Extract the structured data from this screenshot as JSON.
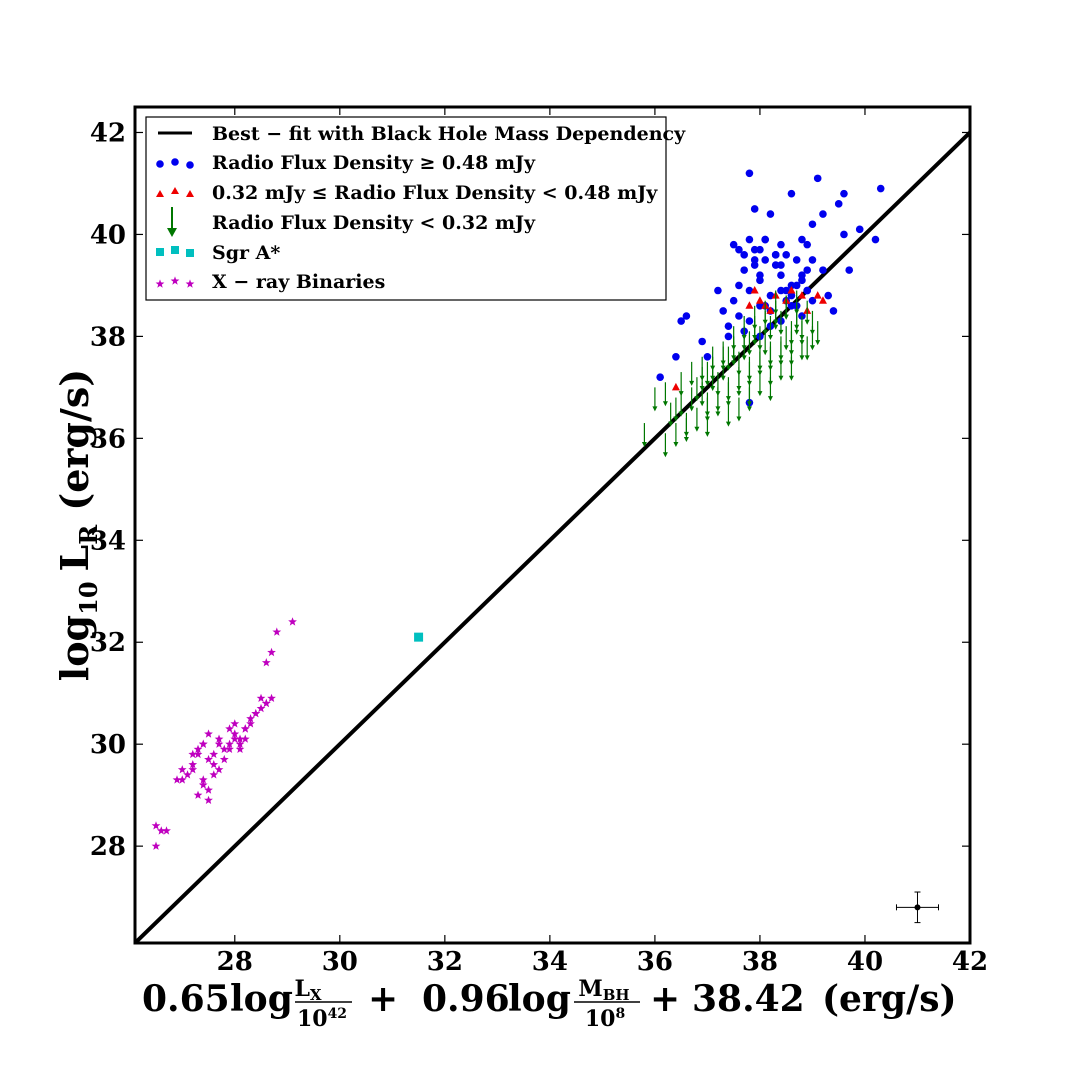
{
  "chart_data": {
    "type": "scatter",
    "title": "",
    "xlabel": "0.65 log (L_X / 10^42) + 0.96 log (M_BH / 10^8) + 38.42 (erg/s)",
    "ylabel": "log10 L_R (erg/s)",
    "xlabel_parts": {
      "c1": "0.65",
      "log1": "log",
      "num1": "L",
      "num1_sub": "X",
      "den1": "10",
      "den1_sup": "42",
      "plus1": "+",
      "c2": "0.96",
      "log2": "log",
      "num2": "M",
      "num2_sub": "BH",
      "den2": "10",
      "den2_sup": "8",
      "plus2": "+",
      "const": "38.42",
      "unit": "(erg/s)"
    },
    "ylabel_parts": {
      "main": "log",
      "sub": "10",
      "var": "L",
      "var_sub": "R",
      "unit": "(erg/s)"
    },
    "xlim": [
      26.1,
      42
    ],
    "ylim": [
      26.1,
      42.5
    ],
    "xticks": [
      28,
      30,
      32,
      34,
      36,
      38,
      40,
      42
    ],
    "yticks": [
      28,
      30,
      32,
      34,
      36,
      38,
      40,
      42
    ],
    "grid": false,
    "legend_position": "upper-left",
    "legend": [
      {
        "key": "fit",
        "label": "Best − fit with Black Hole Mass Dependency",
        "color": "#000000"
      },
      {
        "key": "blue",
        "label": "Radio Flux Density ≥ 0.48 mJy",
        "color": "#0000ee"
      },
      {
        "key": "red",
        "label": "0.32 mJy ≤ Radio Flux Density < 0.48 mJy",
        "color": "#ee0000"
      },
      {
        "key": "green",
        "label": "Radio Flux Density < 0.32 mJy",
        "color": "#007700"
      },
      {
        "key": "sgr",
        "label": "Sgr A*",
        "color": "#00bfbf"
      },
      {
        "key": "xrb",
        "label": "X − ray  Binaries",
        "color": "#bf00bf"
      }
    ],
    "fit_line": {
      "x": [
        26.1,
        42
      ],
      "y": [
        26.1,
        42
      ]
    },
    "error_bar": {
      "x": 41.0,
      "y": 26.8,
      "xerr": 0.4,
      "yerr": 0.3
    },
    "series": [
      {
        "name": "Radio Flux Density ≥ 0.48 mJy",
        "marker": "circle",
        "color": "#0000ee",
        "x": [
          37.8,
          39.1,
          39.6,
          40.3,
          38.6,
          39.2,
          38.2,
          37.9,
          39.5,
          39.6,
          39.9,
          37.5,
          37.8,
          37.6,
          38.1,
          38.4,
          38.8,
          39.0,
          37.7,
          37.9,
          38.3,
          38.7,
          39.2,
          39.7,
          40.2,
          36.1,
          36.4,
          36.5,
          36.6,
          36.9,
          37.0,
          37.2,
          37.4,
          37.3,
          37.5,
          37.6,
          37.8,
          38.0,
          38.2,
          38.5,
          38.7,
          38.9,
          39.0,
          39.4,
          37.7,
          37.9,
          38.0,
          38.1,
          38.3,
          38.4,
          38.5,
          38.6,
          38.8,
          38.9,
          37.6,
          37.8,
          38.0,
          38.2,
          38.4,
          38.6,
          38.8,
          39.0,
          37.9,
          38.1,
          38.3,
          38.5,
          38.7,
          38.9,
          37.7,
          38.0,
          38.2,
          38.4,
          38.6,
          38.8,
          38.0,
          38.4,
          38.9,
          37.4,
          38.1,
          39.3,
          37.8
        ],
        "y": [
          41.2,
          41.1,
          40.8,
          40.9,
          40.8,
          40.4,
          40.4,
          40.5,
          40.6,
          40.0,
          40.1,
          39.8,
          39.9,
          39.7,
          39.9,
          39.8,
          39.9,
          40.2,
          39.6,
          39.5,
          39.6,
          39.5,
          39.3,
          39.3,
          39.9,
          37.2,
          37.6,
          38.3,
          38.4,
          37.9,
          37.6,
          38.9,
          38.0,
          38.5,
          38.7,
          39.0,
          38.9,
          39.1,
          38.8,
          38.7,
          38.6,
          38.9,
          38.7,
          38.5,
          39.3,
          39.4,
          39.2,
          39.5,
          39.4,
          39.2,
          39.6,
          39.0,
          39.1,
          39.3,
          38.4,
          38.3,
          38.6,
          38.5,
          38.9,
          38.8,
          39.2,
          39.5,
          39.7,
          39.9,
          39.6,
          38.9,
          39.0,
          39.8,
          38.1,
          38.0,
          38.2,
          38.3,
          38.6,
          38.4,
          39.7,
          39.4,
          38.9,
          38.2,
          38.6,
          38.8,
          36.7
        ]
      },
      {
        "name": "0.32 mJy ≤ Radio Flux Density < 0.48 mJy",
        "marker": "triangle",
        "color": "#ee0000",
        "x": [
          36.4,
          37.9,
          38.0,
          38.1,
          38.3,
          38.5,
          38.6,
          38.8,
          38.9,
          39.1,
          39.2,
          37.8,
          38.2
        ],
        "y": [
          37.0,
          38.9,
          38.7,
          38.6,
          38.8,
          38.7,
          38.9,
          38.8,
          38.5,
          38.8,
          38.7,
          38.6,
          38.5
        ]
      },
      {
        "name": "Radio Flux Density < 0.32 mJy",
        "marker": "arrow",
        "color": "#007700",
        "x": [
          35.8,
          36.0,
          36.2,
          36.4,
          36.6,
          36.8,
          37.0,
          37.2,
          37.4,
          37.6,
          37.8,
          38.0,
          38.2,
          38.4,
          38.6,
          38.8,
          39.0,
          36.3,
          36.5,
          36.7,
          36.9,
          37.1,
          37.3,
          37.5,
          37.7,
          37.9,
          38.1,
          38.3,
          38.5,
          38.7,
          38.9,
          36.6,
          36.8,
          37.0,
          37.2,
          37.4,
          37.6,
          37.8,
          38.0,
          38.2,
          38.4,
          38.6,
          38.8,
          36.9,
          37.1,
          37.3,
          37.5,
          37.7,
          37.9,
          38.1,
          38.3,
          38.5,
          38.7,
          37.0,
          37.2,
          37.4,
          37.6,
          37.8,
          38.0,
          38.2,
          38.4,
          36.5,
          36.7,
          36.9,
          37.1,
          37.3,
          37.5,
          37.7,
          37.9,
          38.1,
          38.3,
          38.5,
          38.7,
          38.9,
          39.1,
          37.6,
          37.8,
          38.0,
          38.2,
          38.4,
          38.6,
          38.8,
          36.2,
          36.4,
          37.0,
          37.4,
          37.8,
          38.2,
          38.6,
          39.0
        ],
        "y": [
          36.3,
          37.0,
          37.1,
          36.8,
          36.5,
          37.2,
          37.5,
          37.3,
          37.8,
          37.7,
          38.1,
          38.2,
          38.4,
          38.5,
          38.3,
          38.4,
          38.5,
          36.7,
          36.9,
          37.0,
          37.1,
          37.4,
          37.6,
          37.9,
          38.0,
          38.3,
          38.1,
          38.6,
          38.2,
          38.5,
          38.0,
          36.4,
          36.6,
          36.8,
          36.9,
          37.1,
          37.3,
          37.6,
          37.8,
          37.9,
          38.0,
          38.1,
          38.3,
          37.4,
          37.6,
          37.8,
          38.0,
          38.2,
          38.4,
          38.5,
          38.7,
          38.8,
          38.9,
          36.9,
          37.0,
          37.2,
          37.4,
          37.5,
          37.7,
          37.8,
          37.9,
          37.3,
          37.5,
          37.6,
          37.8,
          37.9,
          38.2,
          38.4,
          38.6,
          38.7,
          38.9,
          38.8,
          38.6,
          38.7,
          38.3,
          36.8,
          37.1,
          37.3,
          37.5,
          37.6,
          37.9,
          38.0,
          36.1,
          36.3,
          36.5,
          36.7,
          37.0,
          37.2,
          37.6,
          38.2
        ]
      },
      {
        "name": "Sgr A*",
        "marker": "square",
        "color": "#00bfbf",
        "x": [
          31.5
        ],
        "y": [
          32.1
        ]
      },
      {
        "name": "X − ray  Binaries",
        "marker": "star",
        "color": "#bf00bf",
        "x": [
          29.1,
          28.8,
          28.7,
          28.6,
          28.5,
          28.7,
          28.6,
          28.4,
          28.3,
          28.2,
          28.0,
          28.1,
          27.9,
          27.8,
          27.7,
          27.6,
          27.5,
          27.4,
          27.3,
          27.2,
          27.1,
          27.0,
          26.9,
          27.4,
          27.5,
          27.6,
          27.7,
          27.8,
          27.9,
          28.0,
          28.1,
          28.2,
          27.3,
          27.4,
          27.5,
          27.2,
          27.4,
          27.6,
          28.1,
          28.3,
          28.5,
          26.6,
          26.5,
          26.7,
          26.5,
          27.0,
          27.2,
          27.9,
          28.0,
          27.7,
          27.5,
          27.3,
          28.4,
          28.6,
          28.2
        ],
        "y": [
          32.4,
          32.2,
          31.8,
          31.6,
          30.9,
          30.9,
          30.8,
          30.6,
          30.4,
          30.3,
          30.2,
          30.1,
          30.0,
          29.9,
          30.1,
          29.8,
          29.7,
          30.0,
          29.8,
          29.6,
          29.4,
          29.5,
          29.3,
          29.3,
          29.1,
          29.4,
          29.5,
          29.7,
          29.9,
          30.1,
          30.0,
          30.3,
          29.0,
          29.2,
          28.9,
          29.8,
          30.0,
          29.6,
          29.9,
          30.5,
          30.7,
          28.3,
          28.4,
          28.3,
          28.0,
          29.3,
          29.5,
          30.3,
          30.4,
          30.0,
          30.2,
          29.9,
          30.6,
          30.8,
          30.1
        ]
      }
    ]
  }
}
